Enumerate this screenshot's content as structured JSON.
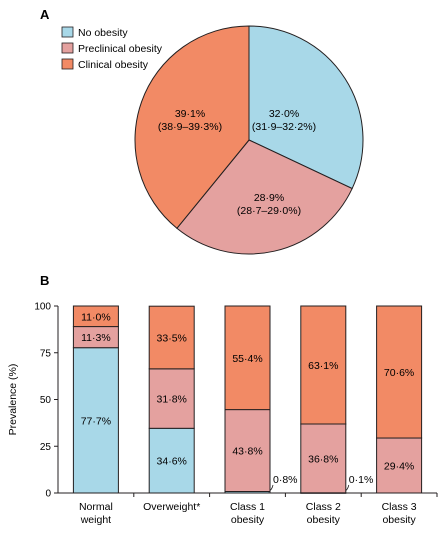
{
  "chart_data": [
    {
      "panel": "A",
      "type": "pie",
      "legend": [
        {
          "name": "No obesity",
          "color": "#a8d8e8"
        },
        {
          "name": "Preclinical obesity",
          "color": "#e4a19f"
        },
        {
          "name": "Clinical obesity",
          "color": "#f28a65"
        }
      ],
      "legend_position": "top-left",
      "slices": [
        {
          "name": "No obesity",
          "value": 32.0,
          "label": "32·0%",
          "ci": "(31·9–32·2%)",
          "color": "#a8d8e8"
        },
        {
          "name": "Preclinical obesity",
          "value": 28.9,
          "label": "28·9%",
          "ci": "(28·7–29·0%)",
          "color": "#e4a19f"
        },
        {
          "name": "Clinical obesity",
          "value": 39.1,
          "label": "39·1%",
          "ci": "(38·9–39·3%)",
          "color": "#f28a65"
        }
      ]
    },
    {
      "panel": "B",
      "type": "bar",
      "stacked": true,
      "categories": [
        [
          "Normal",
          "weight"
        ],
        [
          "Overweight*"
        ],
        [
          "Class 1",
          "obesity"
        ],
        [
          "Class 2",
          "obesity"
        ],
        [
          "Class 3",
          "obesity"
        ]
      ],
      "ylabel": "Prevalence (%)",
      "ylim": [
        0,
        100
      ],
      "yticks": [
        "0",
        "25",
        "50",
        "75",
        "100"
      ],
      "series": [
        {
          "name": "No obesity",
          "color": "#a8d8e8",
          "values": [
            77.7,
            34.6,
            0.8,
            0.1,
            0
          ],
          "labels": [
            "77·7%",
            "34·6%",
            "0·8%",
            "0·1%",
            ""
          ]
        },
        {
          "name": "Preclinical obesity",
          "color": "#e4a19f",
          "values": [
            11.3,
            31.8,
            43.8,
            36.8,
            29.4
          ],
          "labels": [
            "11·3%",
            "31·8%",
            "43·8%",
            "36·8%",
            "29·4%"
          ]
        },
        {
          "name": "Clinical obesity",
          "color": "#f28a65",
          "values": [
            11.0,
            33.5,
            55.4,
            63.1,
            70.6
          ],
          "labels": [
            "11·0%",
            "33·5%",
            "55·4%",
            "63·1%",
            "70·6%"
          ]
        }
      ]
    }
  ]
}
